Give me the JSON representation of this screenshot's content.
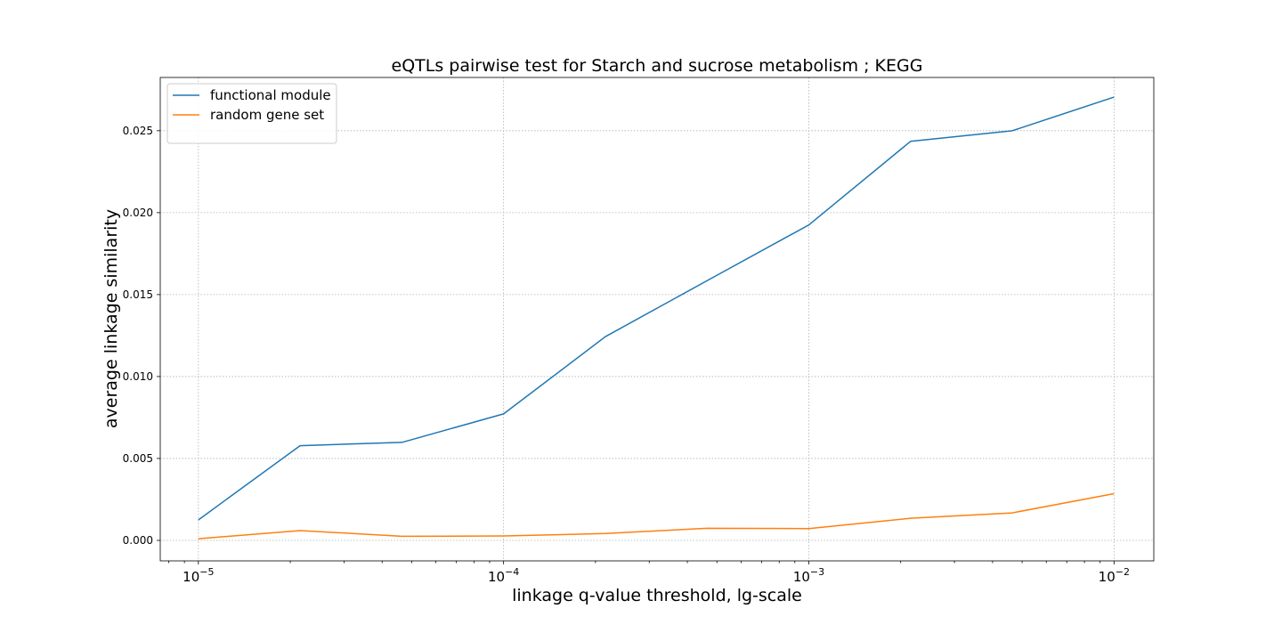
{
  "chart_data": {
    "type": "line",
    "title": "eQTLs pairwise test for Starch and sucrose metabolism ; KEGG",
    "xlabel": "linkage q-value threshold, lg-scale",
    "ylabel": "average linkage similarity",
    "xscale": "log",
    "xlim": [
      7.5e-06,
      0.0135
    ],
    "ylim": [
      -0.00125,
      0.02825
    ],
    "xticks": [
      {
        "value": 1e-05,
        "base": "10",
        "exp": "−5"
      },
      {
        "value": 0.0001,
        "base": "10",
        "exp": "−4"
      },
      {
        "value": 0.001,
        "base": "10",
        "exp": "−3"
      },
      {
        "value": 0.01,
        "base": "10",
        "exp": "−2"
      }
    ],
    "yticks": [
      {
        "value": 0.0,
        "label": "0.000"
      },
      {
        "value": 0.005,
        "label": "0.005"
      },
      {
        "value": 0.01,
        "label": "0.010"
      },
      {
        "value": 0.015,
        "label": "0.015"
      },
      {
        "value": 0.02,
        "label": "0.020"
      },
      {
        "value": 0.025,
        "label": "0.025"
      }
    ],
    "grid": true,
    "legend_position": "upper-left",
    "x": [
      1e-05,
      2.154e-05,
      4.642e-05,
      0.0001,
      0.0002154,
      0.0004642,
      0.001,
      0.002154,
      0.004642,
      0.01
    ],
    "series": [
      {
        "name": "functional module",
        "color": "#1f77b4",
        "values": [
          0.00125,
          0.00578,
          0.00598,
          0.00772,
          0.01243,
          0.01585,
          0.01925,
          0.02435,
          0.025,
          0.02705
        ]
      },
      {
        "name": "random gene set",
        "color": "#ff7f0e",
        "values": [
          0.0001,
          0.0006,
          0.00025,
          0.00027,
          0.00042,
          0.00074,
          0.00072,
          0.00135,
          0.00168,
          0.00285
        ]
      }
    ]
  }
}
